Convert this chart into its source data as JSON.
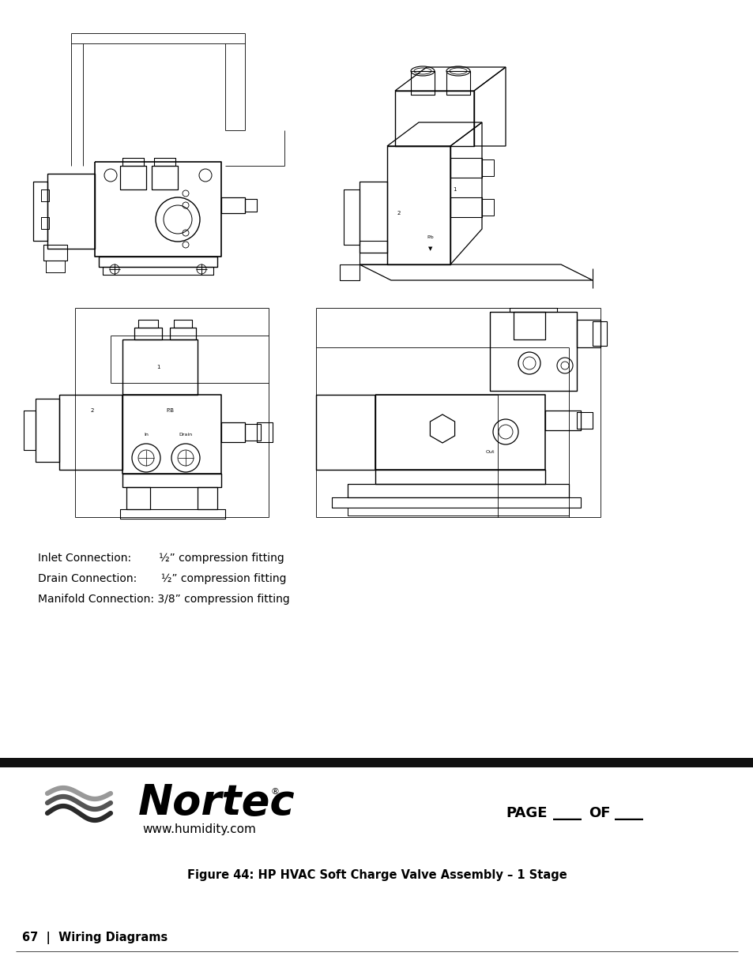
{
  "page_bg": "#ffffff",
  "figure_caption": "Figure 44: HP HVAC Soft Charge Valve Assembly – 1 Stage",
  "page_label": "67  |  Wiring Diagrams",
  "website": "www.humidity.com",
  "page_of": "PAGE____OF____",
  "line1": "Inlet Connection:        ½” compression fitting",
  "line2": "Drain Connection:       ½” compression fitting",
  "line3": "Manifold Connection: 3/8” compression fitting",
  "nortec_text": "Nortec",
  "header_bar_color": "#111111",
  "text_color": "#000000",
  "drawing_lw": 0.8
}
